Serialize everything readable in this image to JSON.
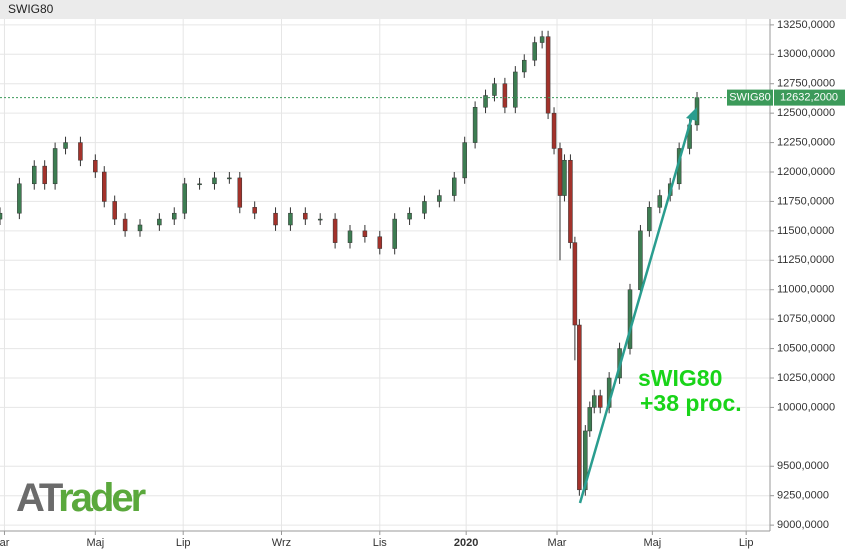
{
  "chart_data": {
    "type": "candlestick",
    "title": "SWIG80",
    "candles": {
      "x": [
        0,
        13,
        23,
        30,
        37,
        44,
        54,
        64,
        70,
        77,
        84,
        94,
        107,
        117,
        124,
        134,
        144,
        154,
        161,
        171,
        185,
        195,
        205,
        215,
        225,
        235,
        245,
        255,
        265,
        275,
        285,
        295,
        305,
        312,
        319,
        326,
        332,
        339,
        346,
        352,
        359,
        364,
        368,
        372,
        376,
        379,
        383,
        386,
        389,
        393,
        396,
        399,
        403,
        409,
        416,
        423,
        430,
        436,
        443,
        450,
        456,
        463,
        468
      ],
      "open": [
        11600,
        11650,
        11900,
        12050,
        11900,
        12200,
        12250,
        12100,
        12000,
        11750,
        11600,
        11500,
        11550,
        11600,
        11650,
        11900,
        11900,
        11950,
        11950,
        11700,
        11650,
        11550,
        11650,
        11600,
        11600,
        11400,
        11500,
        11450,
        11350,
        11600,
        11650,
        11750,
        11800,
        11950,
        12250,
        12550,
        12650,
        12750,
        12550,
        12850,
        12950,
        13100,
        13150,
        12500,
        12200,
        11800,
        12100,
        11400,
        10700,
        9300,
        9800,
        10000,
        10100,
        10000,
        10250,
        10500,
        11000,
        11500,
        11700,
        11800,
        11900,
        12200,
        12400
      ],
      "high": [
        11700,
        11950,
        12100,
        12100,
        12250,
        12300,
        12300,
        12150,
        12050,
        11800,
        11650,
        11600,
        11650,
        11700,
        11950,
        11950,
        12000,
        12000,
        12000,
        11750,
        11700,
        11700,
        11700,
        11650,
        11650,
        11550,
        11550,
        11500,
        11650,
        11700,
        11800,
        11850,
        12000,
        12300,
        12600,
        12700,
        12800,
        12800,
        12900,
        13000,
        13150,
        13200,
        13200,
        12550,
        12250,
        12150,
        12150,
        11450,
        10750,
        9850,
        10050,
        10150,
        10150,
        10300,
        10550,
        11050,
        11550,
        11750,
        11850,
        11950,
        12250,
        12450,
        12680
      ],
      "low": [
        11550,
        11600,
        11850,
        11850,
        11850,
        12150,
        12050,
        11950,
        11700,
        11550,
        11450,
        11450,
        11500,
        11550,
        11600,
        11850,
        11850,
        11900,
        11650,
        11600,
        11500,
        11500,
        11550,
        11550,
        11350,
        11350,
        11400,
        11300,
        11300,
        11550,
        11600,
        11700,
        11750,
        11900,
        12200,
        12500,
        12600,
        12500,
        12500,
        12800,
        12900,
        13050,
        12450,
        12150,
        11250,
        11750,
        11350,
        10400,
        9250,
        9250,
        9750,
        9950,
        9950,
        9950,
        10200,
        10450,
        10950,
        11450,
        11650,
        11750,
        11850,
        12150,
        12350
      ],
      "close": [
        11650,
        11900,
        12050,
        11900,
        12200,
        12250,
        12100,
        12000,
        11750,
        11600,
        11500,
        11550,
        11600,
        11650,
        11900,
        11900,
        11950,
        11950,
        11700,
        11650,
        11550,
        11650,
        11600,
        11600,
        11400,
        11500,
        11450,
        11350,
        11600,
        11650,
        11750,
        11800,
        11950,
        12250,
        12550,
        12650,
        12750,
        12550,
        12850,
        12950,
        13100,
        13150,
        12500,
        12200,
        11800,
        12100,
        11400,
        10700,
        9300,
        9800,
        10000,
        10100,
        10000,
        10250,
        10500,
        11000,
        11500,
        11700,
        11800,
        11900,
        12200,
        12400,
        12632.2
      ]
    },
    "up_color": "#3d7d52",
    "down_color": "#a3322b",
    "xlim": [
      0,
      517
    ],
    "xticks": [
      {
        "value": 3,
        "label": "ar"
      },
      {
        "value": 64,
        "label": "Maj"
      },
      {
        "value": 123,
        "label": "Lip"
      },
      {
        "value": 189,
        "label": "Wrz"
      },
      {
        "value": 255,
        "label": "Lis"
      },
      {
        "value": 313,
        "label": "2020"
      },
      {
        "value": 374,
        "label": "Mar"
      },
      {
        "value": 438,
        "label": "Maj"
      },
      {
        "value": 501,
        "label": "Lip"
      }
    ],
    "ylim": [
      8950,
      13300
    ],
    "yticks": [
      {
        "value": 13250,
        "label": "13250,0000"
      },
      {
        "value": 13000,
        "label": "13000,0000"
      },
      {
        "value": 12750,
        "label": "12750,0000"
      },
      {
        "value": 12500,
        "label": "12500,0000"
      },
      {
        "value": 12250,
        "label": "12250,0000"
      },
      {
        "value": 12000,
        "label": "12000,0000"
      },
      {
        "value": 11750,
        "label": "11750,0000"
      },
      {
        "value": 11500,
        "label": "11500,0000"
      },
      {
        "value": 11250,
        "label": "11250,0000"
      },
      {
        "value": 11000,
        "label": "11000,0000"
      },
      {
        "value": 10750,
        "label": "10750,0000"
      },
      {
        "value": 10500,
        "label": "10500,0000"
      },
      {
        "value": 10250,
        "label": "10250,0000"
      },
      {
        "value": 10000,
        "label": "10000,0000"
      },
      {
        "value": 9500,
        "label": "9500,0000"
      },
      {
        "value": 9250,
        "label": "9250,0000"
      },
      {
        "value": 9000,
        "label": "9000,0000"
      }
    ],
    "grid": true,
    "last_price": {
      "name": "SWIG80",
      "value": 12632.2,
      "label": "12632,2000",
      "color": "#3c9a5a"
    },
    "annotation": [
      "sWIG80",
      "+38 proc."
    ],
    "logo": {
      "prefix": "AT",
      "suffix": "rader"
    }
  }
}
